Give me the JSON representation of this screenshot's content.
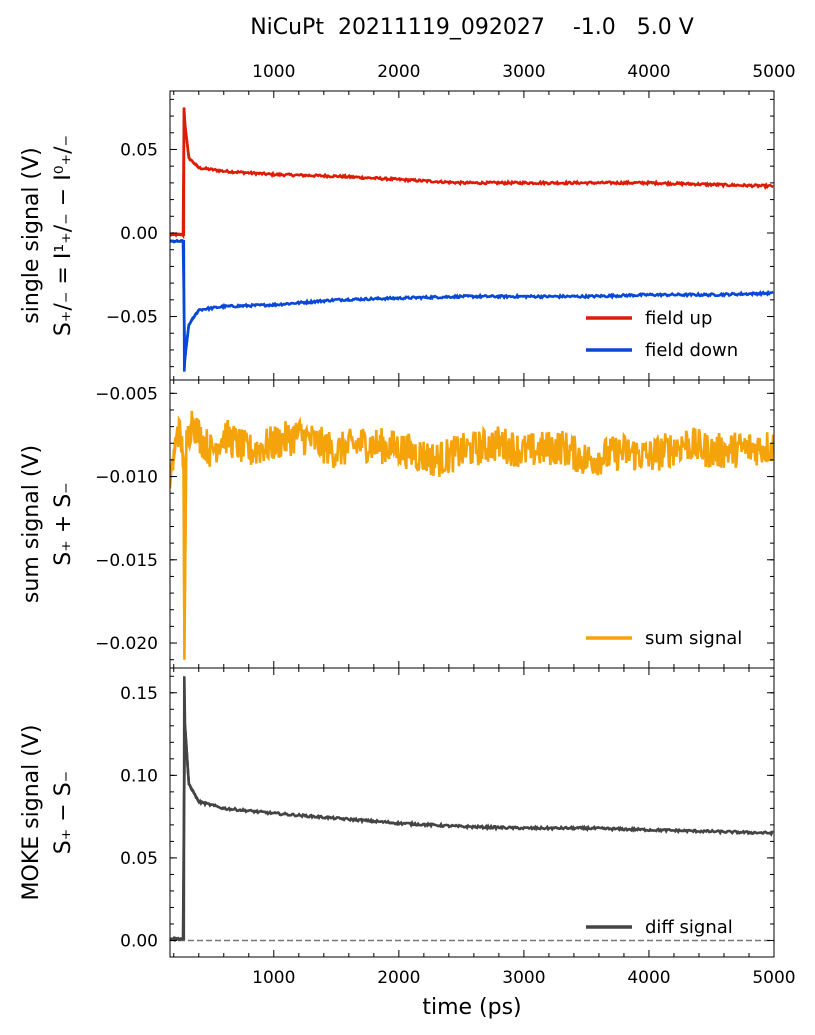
{
  "figure": {
    "title": "NiCuPt  20211119_092027    -1.0   5.0 V"
  },
  "chart_data": [
    {
      "type": "line",
      "panel": "top",
      "ylabel_line1": "single signal  (V)",
      "ylabel_line2": "S₊/₋ = I¹₊/₋ − I⁰₊/₋",
      "xlim": [
        170,
        5000
      ],
      "ylim": [
        -0.088,
        0.085
      ],
      "top_tick_labels": [
        "1000",
        "2000",
        "3000",
        "4000",
        "5000"
      ],
      "xticks": [
        1000,
        2000,
        3000,
        4000,
        5000
      ],
      "yticks": [
        -0.05,
        0.0,
        0.05
      ],
      "ytick_labels": [
        "−0.05",
        "0.00",
        "0.05"
      ],
      "legend_position": "lower-right",
      "series": [
        {
          "name": "field  up",
          "color": "#dd1c05",
          "x": [
            170,
            280,
            282,
            290,
            320,
            400,
            600,
            1000,
            1500,
            2000,
            2500,
            3000,
            3500,
            4000,
            4500,
            5000
          ],
          "y": [
            -0.001,
            -0.001,
            0.075,
            0.065,
            0.045,
            0.039,
            0.037,
            0.035,
            0.034,
            0.032,
            0.03,
            0.03,
            0.03,
            0.03,
            0.029,
            0.028
          ]
        },
        {
          "name": "field down",
          "color": "#0748d6",
          "x": [
            170,
            280,
            284,
            290,
            320,
            400,
            600,
            1000,
            1500,
            2000,
            2500,
            3000,
            3500,
            4000,
            4500,
            5000
          ],
          "y": [
            -0.005,
            -0.005,
            -0.083,
            -0.075,
            -0.055,
            -0.046,
            -0.044,
            -0.043,
            -0.04,
            -0.039,
            -0.038,
            -0.038,
            -0.038,
            -0.037,
            -0.037,
            -0.036
          ]
        }
      ]
    },
    {
      "type": "line",
      "panel": "middle",
      "ylabel_line1": "sum signal  (V)",
      "ylabel_line2": "S₊ + S₋",
      "xlim": [
        170,
        5000
      ],
      "ylim": [
        -0.0215,
        -0.0042
      ],
      "xticks": [
        1000,
        2000,
        3000,
        4000,
        5000
      ],
      "yticks": [
        -0.02,
        -0.015,
        -0.01,
        -0.005
      ],
      "ytick_labels": [
        "−0.020",
        "−0.015",
        "−0.010",
        "−0.005"
      ],
      "legend_position": "lower-right",
      "series": [
        {
          "name": "sum signal",
          "color": "#f5a30a",
          "x": [
            170,
            200,
            230,
            260,
            280,
            285,
            300,
            350,
            400,
            450,
            500,
            600,
            700,
            800,
            1000,
            1200,
            1500,
            1700,
            2000,
            2300,
            2500,
            2800,
            3000,
            3300,
            3500,
            3800,
            4000,
            4300,
            4500,
            4800,
            5000
          ],
          "y": [
            -0.01,
            -0.009,
            -0.007,
            -0.008,
            -0.009,
            -0.021,
            -0.008,
            -0.0065,
            -0.0075,
            -0.008,
            -0.0085,
            -0.0075,
            -0.008,
            -0.0085,
            -0.008,
            -0.0075,
            -0.0085,
            -0.008,
            -0.0083,
            -0.009,
            -0.0085,
            -0.008,
            -0.0085,
            -0.0082,
            -0.009,
            -0.0085,
            -0.0088,
            -0.008,
            -0.0085,
            -0.0083,
            -0.0082
          ]
        }
      ]
    },
    {
      "type": "line",
      "panel": "bottom",
      "ylabel_line1": "MOKE signal (V)",
      "ylabel_line2": "S₊ − S₋",
      "xlabel": "time (ps)",
      "xlim": [
        170,
        5000
      ],
      "ylim": [
        -0.01,
        0.165
      ],
      "xticks": [
        1000,
        2000,
        3000,
        4000,
        5000
      ],
      "xtick_labels": [
        "1000",
        "2000",
        "3000",
        "4000",
        "5000"
      ],
      "yticks": [
        0.0,
        0.05,
        0.1,
        0.15
      ],
      "ytick_labels": [
        "0.00",
        "0.05",
        "0.10",
        "0.15"
      ],
      "reference_line_y": 0.0,
      "legend_position": "lower-right",
      "series": [
        {
          "name": "diff signal",
          "color": "#444444",
          "x": [
            170,
            280,
            284,
            290,
            320,
            400,
            600,
            1000,
            1500,
            2000,
            2500,
            3000,
            3500,
            4000,
            4500,
            5000
          ],
          "y": [
            0.001,
            0.001,
            0.16,
            0.13,
            0.095,
            0.084,
            0.08,
            0.077,
            0.074,
            0.071,
            0.069,
            0.068,
            0.068,
            0.067,
            0.066,
            0.065
          ]
        }
      ]
    }
  ]
}
